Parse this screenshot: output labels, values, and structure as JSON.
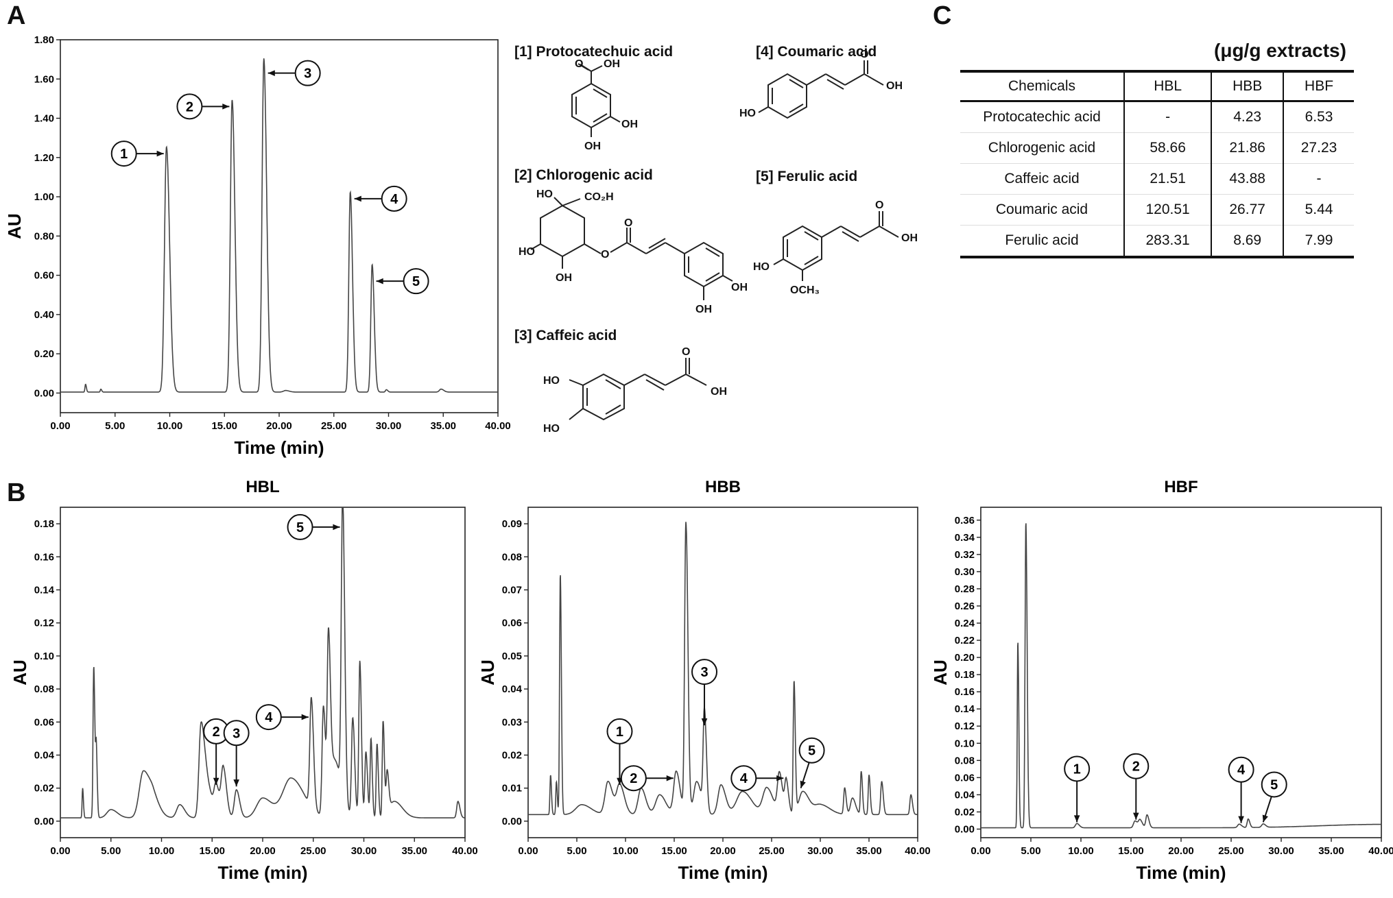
{
  "panel_labels": {
    "a": "A",
    "b": "B",
    "c": "C"
  },
  "compound_names": [
    "[1] Protocatechuic acid",
    "[2] Chlorogenic acid",
    "[3] Caffeic acid",
    "[4] Coumaric acid",
    "[5] Ferulic acid"
  ],
  "structure_labels": {
    "oh": "OH",
    "ho": "HO",
    "o": "O",
    "co2h": "CO₂H",
    "och3": "OCH₃"
  },
  "table": {
    "units": "(μg/g extracts)",
    "headers": [
      "Chemicals",
      "HBL",
      "HBB",
      "HBF"
    ],
    "rows": [
      [
        "Protocatechic acid",
        "-",
        "4.23",
        "6.53"
      ],
      [
        "Chlorogenic acid",
        "58.66",
        "21.86",
        "27.23"
      ],
      [
        "Caffeic acid",
        "21.51",
        "43.88",
        "-"
      ],
      [
        "Coumaric acid",
        "120.51",
        "26.77",
        "5.44"
      ],
      [
        "Ferulic acid",
        "283.31",
        "8.69",
        "7.99"
      ]
    ]
  },
  "chart_data": [
    {
      "id": "A",
      "type": "line",
      "title": "",
      "xlabel": "Time (min)",
      "ylabel": "AU",
      "xlim": [
        0,
        40
      ],
      "ylim": [
        -0.1,
        1.8
      ],
      "xticks": [
        "0.00",
        "5.00",
        "10.00",
        "15.00",
        "20.00",
        "25.00",
        "30.00",
        "35.00",
        "40.00"
      ],
      "yticks": [
        "0.00",
        "0.20",
        "0.40",
        "0.60",
        "0.80",
        "1.00",
        "1.20",
        "1.40",
        "1.60",
        "1.80"
      ],
      "baseline": 0.005,
      "peaks": [
        {
          "t": 2.3,
          "h": 0.04,
          "w": 0.05
        },
        {
          "t": 3.7,
          "h": 0.015,
          "w": 0.05
        },
        {
          "t": 9.7,
          "h": 1.25,
          "w": 0.18
        },
        {
          "t": 15.7,
          "h": 1.49,
          "w": 0.16
        },
        {
          "t": 18.6,
          "h": 1.7,
          "w": 0.16
        },
        {
          "t": 20.6,
          "h": 0.008,
          "w": 0.2
        },
        {
          "t": 26.5,
          "h": 1.02,
          "w": 0.13
        },
        {
          "t": 28.5,
          "h": 0.65,
          "w": 0.12
        },
        {
          "t": 29.8,
          "h": 0.012,
          "w": 0.08
        },
        {
          "t": 34.8,
          "h": 0.015,
          "w": 0.15
        }
      ],
      "annotations": [
        {
          "label": "1",
          "t": 9.7,
          "y": 1.22,
          "side": "left"
        },
        {
          "label": "2",
          "t": 15.7,
          "y": 1.46,
          "side": "left"
        },
        {
          "label": "3",
          "t": 18.6,
          "y": 1.63,
          "side": "right"
        },
        {
          "label": "4",
          "t": 26.5,
          "y": 0.99,
          "side": "right"
        },
        {
          "label": "5",
          "t": 28.5,
          "y": 0.57,
          "side": "right"
        }
      ]
    },
    {
      "id": "HBL",
      "type": "line",
      "title": "HBL",
      "xlabel": "Time (min)",
      "ylabel": "AU",
      "xlim": [
        0,
        40
      ],
      "ylim": [
        -0.01,
        0.19
      ],
      "xticks": [
        "0.00",
        "5.00",
        "10.00",
        "15.00",
        "20.00",
        "25.00",
        "30.00",
        "35.00",
        "40.00"
      ],
      "yticks": [
        "0.00",
        "0.02",
        "0.04",
        "0.06",
        "0.08",
        "0.10",
        "0.12",
        "0.14",
        "0.16",
        "0.18"
      ],
      "baseline": 0.002,
      "peaks": [
        {
          "t": 2.2,
          "h": 0.018,
          "w": 0.05
        },
        {
          "t": 3.3,
          "h": 0.092,
          "w": 0.07
        },
        {
          "t": 3.55,
          "h": 0.04,
          "w": 0.06
        },
        {
          "t": 5.0,
          "h": 0.005,
          "w": 0.4
        },
        {
          "t": 8.2,
          "h": 0.028,
          "w": 0.4
        },
        {
          "t": 9.2,
          "h": 0.01,
          "w": 0.4
        },
        {
          "t": 11.8,
          "h": 0.008,
          "w": 0.3
        },
        {
          "t": 13.9,
          "h": 0.055,
          "w": 0.2
        },
        {
          "t": 14.5,
          "h": 0.02,
          "w": 0.3
        },
        {
          "t": 15.4,
          "h": 0.018,
          "w": 0.2
        },
        {
          "t": 16.1,
          "h": 0.03,
          "w": 0.2
        },
        {
          "t": 17.4,
          "h": 0.017,
          "w": 0.2
        },
        {
          "t": 20.0,
          "h": 0.012,
          "w": 0.6
        },
        {
          "t": 22.8,
          "h": 0.024,
          "w": 0.8
        },
        {
          "t": 24.8,
          "h": 0.066,
          "w": 0.14
        },
        {
          "t": 26.0,
          "h": 0.066,
          "w": 0.13
        },
        {
          "t": 26.5,
          "h": 0.1,
          "w": 0.12
        },
        {
          "t": 27.1,
          "h": 0.035,
          "w": 0.4
        },
        {
          "t": 27.9,
          "h": 0.18,
          "w": 0.13
        },
        {
          "t": 28.9,
          "h": 0.06,
          "w": 0.12
        },
        {
          "t": 29.6,
          "h": 0.095,
          "w": 0.1
        },
        {
          "t": 30.2,
          "h": 0.04,
          "w": 0.1
        },
        {
          "t": 30.7,
          "h": 0.048,
          "w": 0.08
        },
        {
          "t": 31.3,
          "h": 0.045,
          "w": 0.08
        },
        {
          "t": 31.9,
          "h": 0.058,
          "w": 0.08
        },
        {
          "t": 32.3,
          "h": 0.025,
          "w": 0.1
        },
        {
          "t": 33.0,
          "h": 0.01,
          "w": 0.5
        },
        {
          "t": 39.3,
          "h": 0.01,
          "w": 0.12
        }
      ],
      "annotations": [
        {
          "label": "2",
          "t": 15.4,
          "y": 0.022,
          "side": "above"
        },
        {
          "label": "3",
          "t": 17.4,
          "y": 0.021,
          "side": "above"
        },
        {
          "label": "4",
          "t": 24.8,
          "y": 0.063,
          "side": "left"
        },
        {
          "label": "5",
          "t": 27.9,
          "y": 0.178,
          "side": "left"
        }
      ]
    },
    {
      "id": "HBB",
      "type": "line",
      "title": "HBB",
      "xlabel": "Time (min)",
      "ylabel": "AU",
      "xlim": [
        0,
        40
      ],
      "ylim": [
        -0.005,
        0.095
      ],
      "xticks": [
        "0.00",
        "5.00",
        "10.00",
        "15.00",
        "20.00",
        "25.00",
        "30.00",
        "35.00",
        "40.00"
      ],
      "yticks": [
        "0.00",
        "0.01",
        "0.02",
        "0.03",
        "0.04",
        "0.05",
        "0.06",
        "0.07",
        "0.08",
        "0.09"
      ],
      "baseline": 0.002,
      "peaks": [
        {
          "t": 2.3,
          "h": 0.012,
          "w": 0.06
        },
        {
          "t": 2.9,
          "h": 0.01,
          "w": 0.06
        },
        {
          "t": 3.3,
          "h": 0.073,
          "w": 0.07
        },
        {
          "t": 5.5,
          "h": 0.003,
          "w": 0.6
        },
        {
          "t": 8.2,
          "h": 0.01,
          "w": 0.3
        },
        {
          "t": 9.4,
          "h": 0.009,
          "w": 0.3
        },
        {
          "t": 11.6,
          "h": 0.008,
          "w": 0.3
        },
        {
          "t": 13.5,
          "h": 0.006,
          "w": 0.4
        },
        {
          "t": 15.2,
          "h": 0.013,
          "w": 0.25
        },
        {
          "t": 16.2,
          "h": 0.088,
          "w": 0.13
        },
        {
          "t": 17.3,
          "h": 0.01,
          "w": 0.3
        },
        {
          "t": 18.1,
          "h": 0.03,
          "w": 0.13
        },
        {
          "t": 19.8,
          "h": 0.009,
          "w": 0.3
        },
        {
          "t": 22.0,
          "h": 0.007,
          "w": 0.6
        },
        {
          "t": 24.5,
          "h": 0.008,
          "w": 0.4
        },
        {
          "t": 25.8,
          "h": 0.012,
          "w": 0.2
        },
        {
          "t": 26.5,
          "h": 0.01,
          "w": 0.15
        },
        {
          "t": 27.3,
          "h": 0.04,
          "w": 0.08
        },
        {
          "t": 28.2,
          "h": 0.007,
          "w": 0.4
        },
        {
          "t": 30.0,
          "h": 0.003,
          "w": 0.6
        },
        {
          "t": 32.5,
          "h": 0.008,
          "w": 0.1
        },
        {
          "t": 33.3,
          "h": 0.005,
          "w": 0.2
        },
        {
          "t": 34.2,
          "h": 0.013,
          "w": 0.08
        },
        {
          "t": 35.0,
          "h": 0.012,
          "w": 0.08
        },
        {
          "t": 36.3,
          "h": 0.01,
          "w": 0.1
        },
        {
          "t": 39.3,
          "h": 0.006,
          "w": 0.1
        }
      ],
      "annotations": [
        {
          "label": "1",
          "t": 9.4,
          "y": 0.011,
          "side": "above"
        },
        {
          "label": "2",
          "t": 15.2,
          "y": 0.013,
          "side": "left"
        },
        {
          "label": "3",
          "t": 18.1,
          "y": 0.029,
          "side": "above"
        },
        {
          "label": "4",
          "t": 26.5,
          "y": 0.013,
          "side": "left"
        },
        {
          "label": "5",
          "t": 28.0,
          "y": 0.01,
          "side": "aboveright"
        }
      ]
    },
    {
      "id": "HBF",
      "type": "line",
      "title": "HBF",
      "xlabel": "Time (min)",
      "ylabel": "AU",
      "xlim": [
        0,
        40
      ],
      "ylim": [
        -0.01,
        0.375
      ],
      "xticks": [
        "0.00",
        "5.00",
        "10.00",
        "15.00",
        "20.00",
        "25.00",
        "30.00",
        "35.00",
        "40.00"
      ],
      "yticks": [
        "0.00",
        "0.02",
        "0.04",
        "0.06",
        "0.08",
        "0.10",
        "0.12",
        "0.14",
        "0.16",
        "0.18",
        "0.20",
        "0.22",
        "0.24",
        "0.26",
        "0.28",
        "0.30",
        "0.32",
        "0.34",
        "0.36"
      ],
      "baseline": 0.0015,
      "peaks": [
        {
          "t": 3.7,
          "h": 0.218,
          "w": 0.06
        },
        {
          "t": 4.5,
          "h": 0.357,
          "w": 0.08
        },
        {
          "t": 9.6,
          "h": 0.005,
          "w": 0.15
        },
        {
          "t": 15.4,
          "h": 0.008,
          "w": 0.15
        },
        {
          "t": 15.9,
          "h": 0.009,
          "w": 0.15
        },
        {
          "t": 16.6,
          "h": 0.015,
          "w": 0.12
        },
        {
          "t": 25.8,
          "h": 0.004,
          "w": 0.15
        },
        {
          "t": 26.7,
          "h": 0.01,
          "w": 0.1
        },
        {
          "t": 28.2,
          "h": 0.004,
          "w": 0.15
        },
        {
          "t": 40.0,
          "h": 0.004,
          "w": 6.0
        }
      ],
      "annotations": [
        {
          "label": "1",
          "t": 9.6,
          "y": 0.008,
          "side": "above"
        },
        {
          "label": "2",
          "t": 15.5,
          "y": 0.011,
          "side": "above"
        },
        {
          "label": "4",
          "t": 26.0,
          "y": 0.007,
          "side": "above"
        },
        {
          "label": "5",
          "t": 28.2,
          "y": 0.008,
          "side": "aboveright"
        }
      ]
    }
  ]
}
